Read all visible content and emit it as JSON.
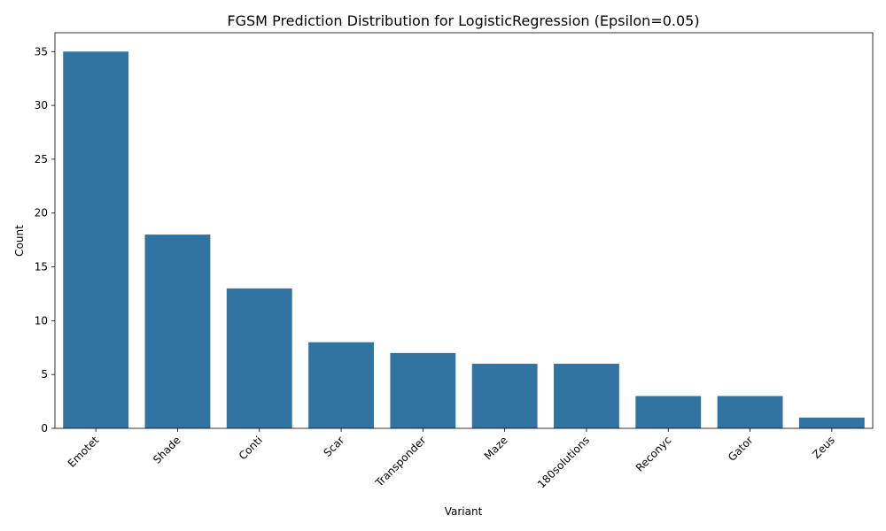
{
  "chart_data": {
    "type": "bar",
    "title": "FGSM Prediction Distribution for LogisticRegression (Epsilon=0.05)",
    "xlabel": "Variant",
    "ylabel": "Count",
    "categories": [
      "Emotet",
      "Shade",
      "Conti",
      "Scar",
      "Transponder",
      "Maze",
      "180solutions",
      "Reconyc",
      "Gator",
      "Zeus"
    ],
    "values": [
      35,
      18,
      13,
      8,
      7,
      6,
      6,
      3,
      3,
      1
    ],
    "ylim": [
      0,
      36.75
    ],
    "yticks": [
      0,
      5,
      10,
      15,
      20,
      25,
      30,
      35
    ],
    "bar_color": "#3274a1",
    "grid": false,
    "legend": "none"
  }
}
